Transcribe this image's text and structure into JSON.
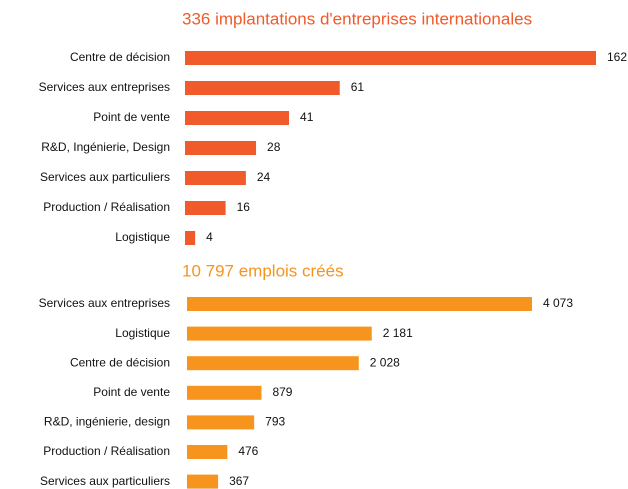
{
  "chart_data": [
    {
      "type": "bar",
      "orientation": "horizontal",
      "title": "336 implantations d'entreprises internationales",
      "color": "#f15a2b",
      "categories": [
        "Centre de décision",
        "Services aux entreprises",
        "Point de vente",
        "R&D, Ingénierie, Design",
        "Services aux particuliers",
        "Production / Réalisation",
        "Logistique"
      ],
      "values": [
        162,
        61,
        41,
        28,
        24,
        16,
        4
      ]
    },
    {
      "type": "bar",
      "orientation": "horizontal",
      "title": "10 797 emplois créés",
      "color": "#f7941d",
      "categories": [
        "Services aux entreprises",
        "Logistique",
        "Centre de décision",
        "Point de vente",
        "R&D, ingénierie, design",
        "Production / Réalisation",
        "Services aux particuliers"
      ],
      "values": [
        4073,
        2181,
        2028,
        879,
        793,
        476,
        367
      ],
      "value_labels": [
        "4 073",
        "2 181",
        "2 028",
        "879",
        "793",
        "476",
        "367"
      ]
    }
  ]
}
